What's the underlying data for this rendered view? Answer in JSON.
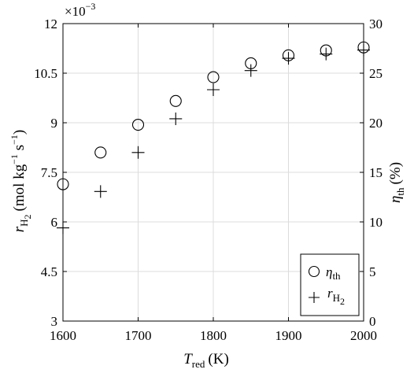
{
  "chart_data": {
    "type": "scatter",
    "x": [
      1600,
      1650,
      1700,
      1750,
      1800,
      1850,
      1900,
      1950,
      2000
    ],
    "xlim": [
      1600,
      2000
    ],
    "xticks": [
      "1600",
      "1700",
      "1800",
      "1900",
      "2000"
    ],
    "xlabel": {
      "main": "T",
      "sub": "red",
      "unit": "(K)"
    },
    "y_left": {
      "lim": [
        3,
        12
      ],
      "ticks": [
        "3",
        "4.5",
        "6",
        "7.5",
        "9",
        "10.5",
        "12"
      ],
      "multiplier": {
        "base": "×10",
        "exp": "−3"
      },
      "label": {
        "main": "r",
        "sub": "H",
        "subsub": "2",
        "unit_open": "(mol kg",
        "exp1": "−1",
        "unit_mid": " s",
        "exp2": "−1",
        "unit_close": ")"
      }
    },
    "y_right": {
      "lim": [
        0,
        30
      ],
      "ticks": [
        "0",
        "5",
        "10",
        "15",
        "20",
        "25",
        "30"
      ],
      "label": {
        "main": "η",
        "sub": "th",
        "unit": "(%)"
      }
    },
    "grid": true,
    "legend_position": "bottom-right",
    "series": [
      {
        "name": "η_th",
        "legend_main": "η",
        "legend_sub": "th",
        "marker": "circle",
        "axis": "right",
        "values": [
          13.8,
          17.0,
          19.8,
          22.2,
          24.6,
          26.0,
          26.8,
          27.3,
          27.6
        ]
      },
      {
        "name": "r_H2",
        "legend_main": "r",
        "legend_sub": "H",
        "legend_subsub": "2",
        "marker": "plus",
        "axis": "left",
        "values": [
          5.82,
          6.92,
          8.1,
          9.12,
          10.0,
          10.58,
          10.95,
          11.08,
          11.2
        ]
      }
    ]
  }
}
